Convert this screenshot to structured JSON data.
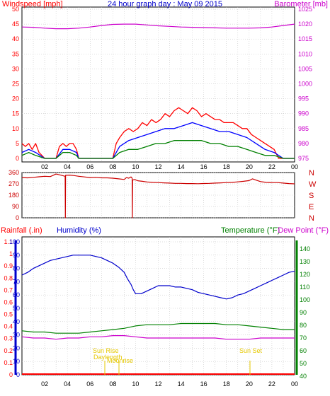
{
  "title": "24 hour graph day : May 09 2015",
  "colors": {
    "wind": "#ff0000",
    "wind_avg": "#0000ff",
    "wind_low": "#008000",
    "baro": "#cc00cc",
    "direction": "#cc0000",
    "rain": "#ff0000",
    "humidity": "#0000cc",
    "temperature": "#008000",
    "dewpoint": "#cc00cc",
    "sun": "#e6c800",
    "grid": "#bdbdbd",
    "axis": "#000000"
  },
  "panels": {
    "wind": {
      "left_label": "Windspeed [mph]",
      "right_label": "Barometer [mb]",
      "left_ticks": [
        "50",
        "45",
        "40",
        "35",
        "30",
        "25",
        "20",
        "15",
        "10",
        "5",
        "0"
      ],
      "right_ticks": [
        "1025",
        "1020",
        "1015",
        "1010",
        "1005",
        "1000",
        "995",
        "990",
        "985",
        "980",
        "975"
      ]
    },
    "direction": {
      "left_ticks": [
        "360",
        "270",
        "180",
        "90",
        "0"
      ],
      "right_ticks": [
        "N",
        "W",
        "S",
        "E",
        "N"
      ]
    },
    "temp": {
      "rain_label": "Rainfall (.in)",
      "hum_label": "Humidity (%)",
      "temp_label": "Temperature (°F)",
      "dew_label": "Dew Point (°F)",
      "rain_ticks": [
        "1.1",
        "1",
        "0.9",
        "0.8",
        "0.7",
        "0.6",
        "0.5",
        "0.4",
        "0.3",
        "0.2",
        "0.1",
        "0"
      ],
      "hum_ticks": [
        "100",
        "90",
        "80",
        "70",
        "60",
        "50",
        "40",
        "30",
        "20",
        "10",
        "0"
      ],
      "temp_ticks": [
        "140",
        "130",
        "120",
        "110",
        "100",
        "90",
        "80",
        "70",
        "60",
        "50",
        "40"
      ]
    }
  },
  "x_ticks": [
    "02",
    "04",
    "06",
    "08",
    "10",
    "12",
    "14",
    "16",
    "18",
    "20",
    "22",
    "00"
  ],
  "annotations": {
    "sunrise": "Sun Rise",
    "daylength": "Daylength",
    "moonrise": "Moonrise",
    "sunset": "Sun Set"
  },
  "chart_data": [
    {
      "type": "line",
      "name": "wind_and_pressure",
      "x_unit": "hour",
      "xlim": [
        0,
        24
      ],
      "left_ylim": [
        0,
        50
      ],
      "right_ylim": [
        973,
        1025
      ],
      "series": [
        {
          "key": "gust",
          "axis": "left",
          "x": [
            0.0,
            0.3,
            0.6,
            0.9,
            1.2,
            1.5,
            2.0,
            2.6,
            3.0,
            3.3,
            3.6,
            3.9,
            4.2,
            4.5,
            4.8,
            5.0,
            5.5,
            6.0,
            7.0,
            8.0,
            8.3,
            8.6,
            9.0,
            9.4,
            9.8,
            10.2,
            10.6,
            11.0,
            11.4,
            11.8,
            12.2,
            12.6,
            13.0,
            13.4,
            13.8,
            14.2,
            14.6,
            15.0,
            15.4,
            15.8,
            16.2,
            16.6,
            17.0,
            17.4,
            17.8,
            18.2,
            18.6,
            19.0,
            19.4,
            19.8,
            20.2,
            20.6,
            21.0,
            21.4,
            21.8,
            22.2,
            22.6,
            23.0,
            23.5,
            24.0
          ],
          "y": [
            5,
            4,
            5,
            3,
            5,
            2,
            0,
            0,
            0,
            4,
            5,
            4,
            5,
            5,
            3,
            0,
            0,
            0,
            0,
            0,
            5,
            7,
            9,
            10,
            9,
            10,
            12,
            11,
            13,
            12,
            13,
            15,
            14,
            16,
            17,
            16,
            15,
            17,
            16,
            14,
            15,
            14,
            13,
            13,
            12,
            12,
            12,
            11,
            10,
            10,
            8,
            7,
            6,
            5,
            4,
            3,
            0,
            0,
            0,
            0
          ]
        },
        {
          "key": "average",
          "axis": "left",
          "x": [
            0.0,
            0.6,
            1.2,
            2.0,
            3.0,
            3.6,
            4.2,
            4.8,
            5.0,
            8.0,
            8.6,
            9.4,
            10.2,
            11.0,
            11.8,
            12.6,
            13.4,
            14.2,
            15.0,
            15.8,
            16.6,
            17.4,
            18.2,
            19.0,
            19.8,
            20.6,
            21.4,
            22.2,
            23.0,
            24.0
          ],
          "y": [
            2,
            3,
            2,
            0,
            0,
            3,
            3,
            2,
            0,
            0,
            4,
            6,
            7,
            8,
            9,
            10,
            10,
            11,
            12,
            11,
            10,
            9,
            9,
            8,
            7,
            5,
            3,
            2,
            0,
            0
          ]
        },
        {
          "key": "low",
          "axis": "left",
          "x": [
            0.0,
            0.6,
            1.2,
            2.0,
            3.0,
            3.6,
            4.2,
            4.8,
            5.0,
            8.0,
            8.6,
            9.4,
            10.2,
            11.0,
            11.8,
            12.6,
            13.4,
            14.2,
            15.0,
            15.8,
            16.6,
            17.4,
            18.2,
            19.0,
            19.8,
            20.6,
            21.4,
            22.2,
            23.0,
            24.0
          ],
          "y": [
            1,
            2,
            1,
            0,
            0,
            2,
            2,
            1,
            0,
            0,
            2,
            3,
            3,
            4,
            5,
            5,
            6,
            6,
            6,
            6,
            5,
            5,
            4,
            4,
            3,
            2,
            1,
            1,
            0,
            0
          ]
        },
        {
          "key": "barometer",
          "axis": "right",
          "x": [
            0,
            1,
            2,
            3,
            4,
            5,
            6,
            7,
            8,
            9,
            10,
            11,
            12,
            13,
            14,
            15,
            16,
            17,
            18,
            19,
            20,
            21,
            22,
            23,
            24
          ],
          "y": [
            1018.8,
            1018.7,
            1018.4,
            1018.2,
            1018.2,
            1018.4,
            1018.8,
            1019.3,
            1019.7,
            1019.8,
            1019.8,
            1019.5,
            1019.2,
            1019.0,
            1018.8,
            1018.7,
            1018.6,
            1018.5,
            1018.4,
            1018.4,
            1018.4,
            1018.5,
            1018.8,
            1019.3,
            1019.8
          ]
        }
      ]
    },
    {
      "type": "line",
      "name": "wind_direction",
      "x_unit": "hour",
      "xlim": [
        0,
        24
      ],
      "ylim": [
        0,
        360
      ],
      "series": [
        {
          "key": "direction",
          "x": [
            0.0,
            0.5,
            1.0,
            1.5,
            2.0,
            2.5,
            3.0,
            3.4,
            3.8,
            3.82,
            3.84,
            4.2,
            4.6,
            5.0,
            5.5,
            6.0,
            6.5,
            7.0,
            7.5,
            8.0,
            8.5,
            9.0,
            9.2,
            9.4,
            9.6,
            9.7,
            9.72,
            9.74,
            9.9,
            10.2,
            10.6,
            11.0,
            11.5,
            12.0,
            12.5,
            13.0,
            13.5,
            14.0,
            14.5,
            15.0,
            15.5,
            16.0,
            16.5,
            17.0,
            17.5,
            18.0,
            18.5,
            19.0,
            19.5,
            20.0,
            20.3,
            20.6,
            21.0,
            21.5,
            22.0,
            22.5,
            23.0,
            23.5,
            24.0
          ],
          "y": [
            320,
            318,
            322,
            326,
            330,
            328,
            348,
            340,
            330,
            0,
            338,
            340,
            336,
            330,
            325,
            320,
            322,
            318,
            318,
            315,
            310,
            305,
            320,
            315,
            325,
            315,
            0,
            300,
            305,
            295,
            290,
            285,
            282,
            280,
            278,
            276,
            274,
            274,
            272,
            272,
            271,
            273,
            274,
            276,
            278,
            280,
            282,
            286,
            290,
            296,
            310,
            300,
            288,
            282,
            280,
            280,
            276,
            272,
            270
          ]
        }
      ]
    },
    {
      "type": "line",
      "name": "humidity_temperature",
      "x_unit": "hour",
      "xlim": [
        0,
        24
      ],
      "humidity_ylim": [
        0,
        100
      ],
      "temperature_ylim": [
        35,
        145
      ],
      "series": [
        {
          "key": "humidity",
          "axis": "humidity",
          "x": [
            0.0,
            0.5,
            1.0,
            1.5,
            2.0,
            2.5,
            3.0,
            3.5,
            4.0,
            4.5,
            5.0,
            5.5,
            6.0,
            6.5,
            7.0,
            7.5,
            8.0,
            8.5,
            9.0,
            9.3,
            9.6,
            9.8,
            10.0,
            10.5,
            11.0,
            11.5,
            12.0,
            12.5,
            13.0,
            13.5,
            14.0,
            14.5,
            15.0,
            15.5,
            16.0,
            16.5,
            17.0,
            17.5,
            18.0,
            18.5,
            19.0,
            19.5,
            20.0,
            20.5,
            21.0,
            21.5,
            22.0,
            22.5,
            23.0,
            23.5,
            24.0
          ],
          "y": [
            75,
            77,
            80,
            82,
            84,
            86,
            87,
            88,
            89,
            90,
            90,
            90,
            90,
            89,
            88,
            86,
            84,
            81,
            77,
            72,
            68,
            64,
            61,
            61,
            63,
            65,
            67,
            67,
            67,
            66,
            66,
            65,
            64,
            62,
            61,
            60,
            59,
            58,
            57,
            58,
            60,
            61,
            63,
            65,
            67,
            69,
            71,
            73,
            75,
            77,
            78
          ]
        },
        {
          "key": "temperature",
          "axis": "temperature",
          "x": [
            0,
            1,
            2,
            3,
            4,
            5,
            6,
            7,
            8,
            9,
            10,
            11,
            12,
            13,
            14,
            15,
            16,
            17,
            18,
            19,
            20,
            21,
            22,
            23,
            24
          ],
          "y": [
            72,
            71,
            71,
            70,
            70,
            70,
            71,
            72,
            73,
            74,
            76,
            77,
            77,
            77,
            78,
            78,
            78,
            78,
            77,
            77,
            76,
            75,
            74,
            73,
            73
          ]
        },
        {
          "key": "dewpoint",
          "axis": "temperature",
          "x": [
            0,
            1,
            2,
            3,
            4,
            5,
            6,
            7,
            8,
            9,
            10,
            11,
            12,
            13,
            14,
            15,
            16,
            17,
            18,
            19,
            20,
            21,
            22,
            23,
            24
          ],
          "y": [
            67,
            66,
            66,
            65,
            66,
            66,
            67,
            67,
            68,
            68,
            67,
            66,
            66,
            66,
            66,
            66,
            66,
            66,
            65,
            65,
            65,
            66,
            66,
            66,
            66
          ]
        }
      ]
    }
  ]
}
